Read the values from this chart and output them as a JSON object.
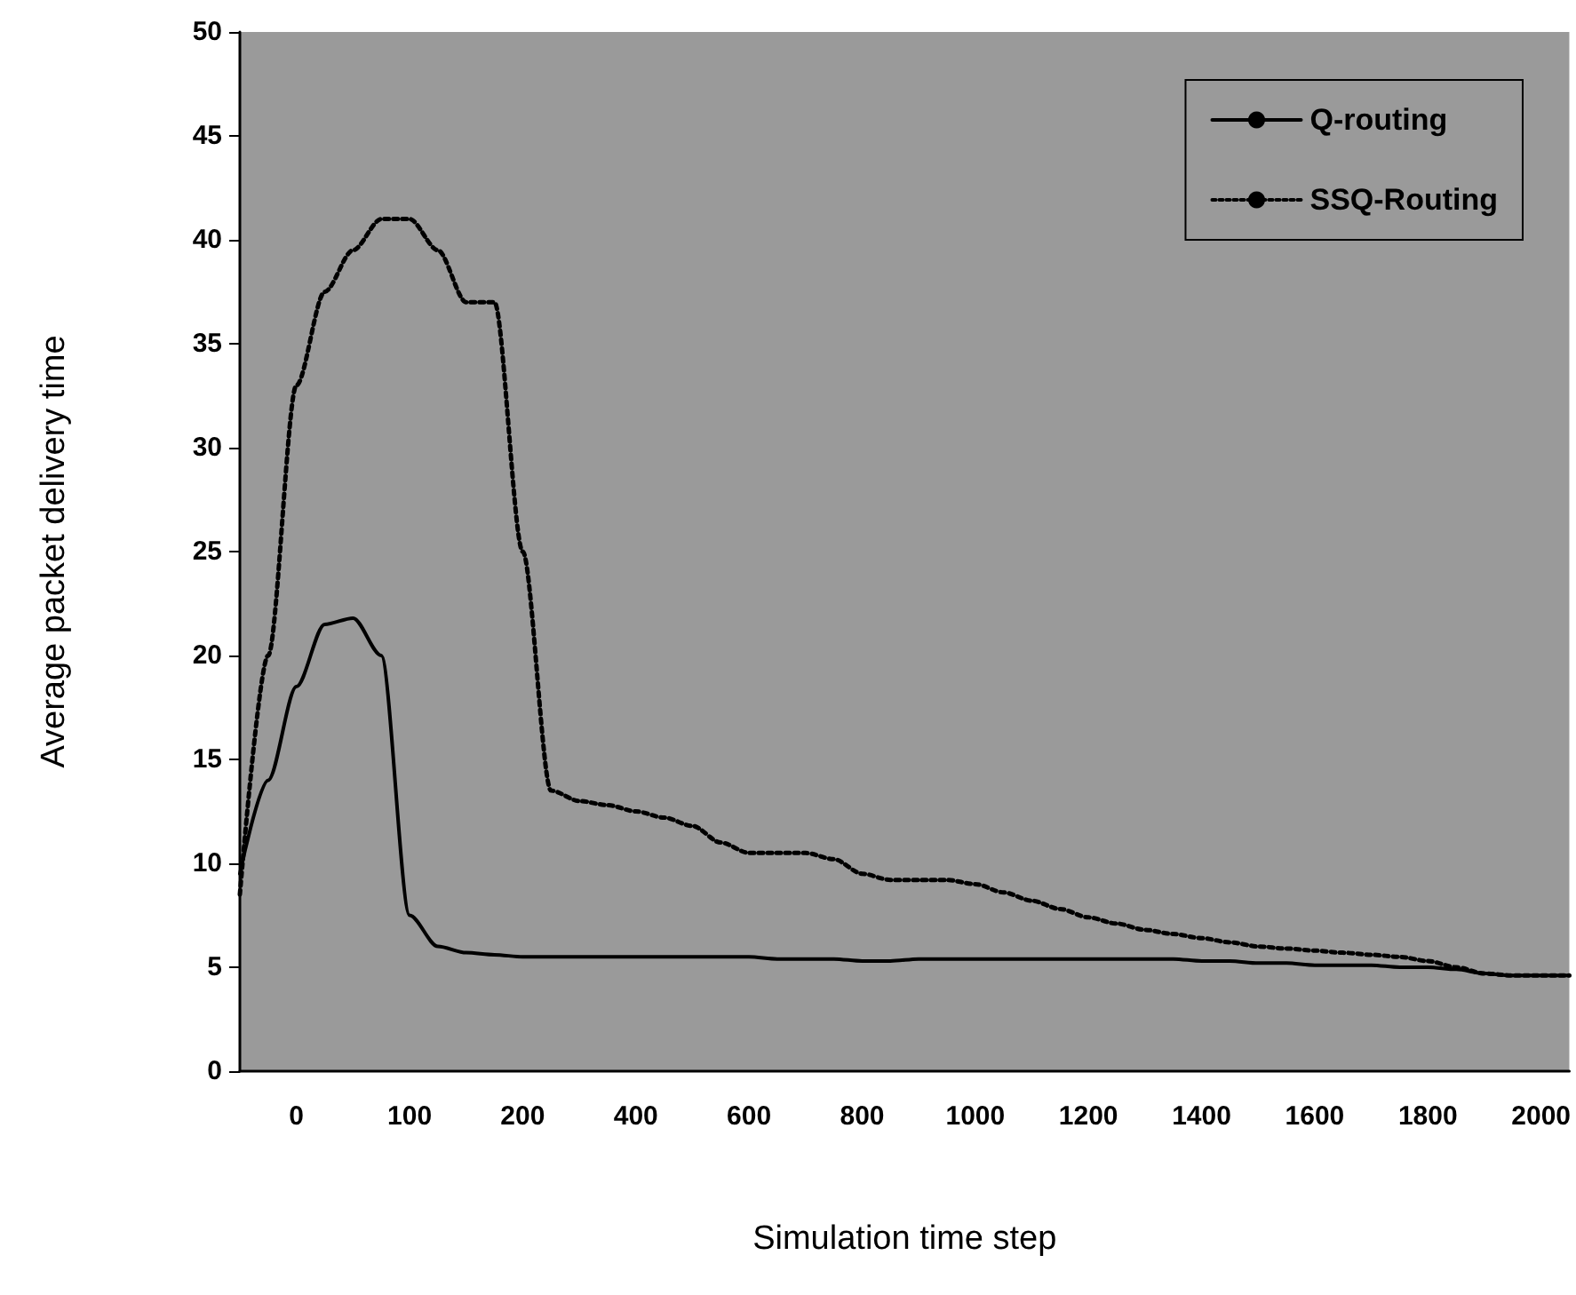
{
  "chart_data": {
    "type": "line",
    "xlabel": "Simulation time step",
    "ylabel": "Average packet delivery time",
    "categories": [
      null,
      null,
      "0",
      null,
      null,
      null,
      "100",
      null,
      null,
      null,
      "200",
      null,
      null,
      null,
      "400",
      null,
      null,
      null,
      "600",
      null,
      null,
      null,
      "800",
      null,
      null,
      null,
      "1000",
      null,
      null,
      null,
      "1200",
      null,
      null,
      null,
      "1400",
      null,
      null,
      null,
      "1600",
      null,
      null,
      null,
      "1800",
      null,
      null,
      null,
      "2000",
      null
    ],
    "series": [
      {
        "name": "Q-routing",
        "color": "#000000",
        "line_style": "solid",
        "values": [
          9.5,
          14,
          18.5,
          21.5,
          21.8,
          20,
          7.5,
          6,
          5.7,
          5.6,
          5.5,
          5.5,
          5.5,
          5.5,
          5.5,
          5.5,
          5.5,
          5.5,
          5.5,
          5.4,
          5.4,
          5.4,
          5.3,
          5.3,
          5.4,
          5.4,
          5.4,
          5.4,
          5.4,
          5.4,
          5.4,
          5.4,
          5.4,
          5.4,
          5.3,
          5.3,
          5.2,
          5.2,
          5.1,
          5.1,
          5.1,
          5,
          5,
          4.9,
          4.7,
          4.6,
          4.6,
          4.6
        ]
      },
      {
        "name": "SSQ-Routing",
        "color": "#000000",
        "line_style": "dotted",
        "values": [
          8.5,
          20,
          33,
          37.5,
          39.5,
          41,
          41,
          39.5,
          37,
          37,
          25,
          13.5,
          13,
          12.8,
          12.5,
          12.2,
          11.8,
          11,
          10.5,
          10.5,
          10.5,
          10.2,
          9.5,
          9.2,
          9.2,
          9.2,
          9,
          8.6,
          8.2,
          7.8,
          7.4,
          7.1,
          6.8,
          6.6,
          6.4,
          6.2,
          6,
          5.9,
          5.8,
          5.7,
          5.6,
          5.5,
          5.3,
          5,
          4.7,
          4.6,
          4.6,
          4.6
        ]
      }
    ],
    "ylim": [
      0,
      50
    ],
    "yticks": [
      0,
      5,
      10,
      15,
      20,
      25,
      30,
      35,
      40,
      45,
      50
    ],
    "grid": false,
    "legend": "top right",
    "marker": "none"
  }
}
